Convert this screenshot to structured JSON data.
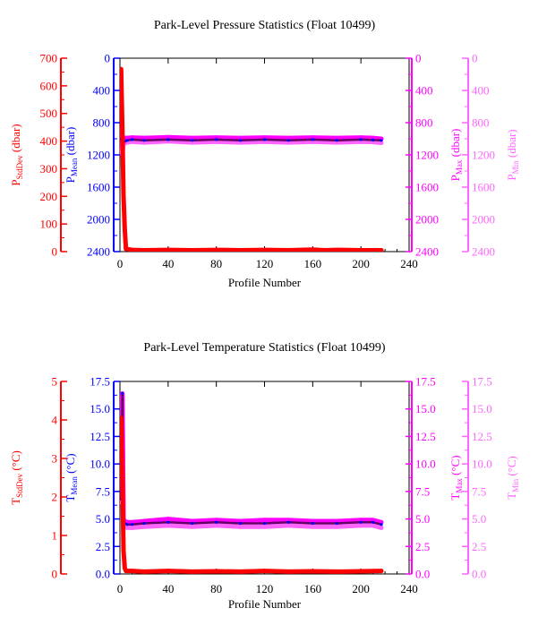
{
  "colors": {
    "red": "#ff0000",
    "blue": "#0000ff",
    "magenta": "#ff00ff",
    "pink": "#ff66ff",
    "dark": "#660066",
    "black": "#000000"
  },
  "chart_data": [
    {
      "type": "line",
      "title": "Park-Level Pressure Statistics (Float 10499)",
      "xlabel": "Profile Number",
      "xlim": [
        0,
        240
      ],
      "xticks": [
        "0",
        "40",
        "80",
        "120",
        "160",
        "200",
        "240"
      ],
      "axes": {
        "stddev": {
          "label_main": "P",
          "label_sub": "StdDev",
          "label_unit": " (dbar)",
          "lim": [
            0,
            700
          ],
          "ticks": [
            "0",
            "100",
            "200",
            "300",
            "400",
            "500",
            "600",
            "700"
          ],
          "color": "#ff0000"
        },
        "mean": {
          "label_main": "P",
          "label_sub": "Mean",
          "label_unit": " (dbar)",
          "lim": [
            2400,
            0
          ],
          "ticks": [
            "0",
            "400",
            "800",
            "1200",
            "1600",
            "2000",
            "2400"
          ],
          "color": "#0000ff"
        },
        "max": {
          "label_main": "P",
          "label_sub": "Max",
          "label_unit": " (dbar)",
          "lim": [
            2400,
            0
          ],
          "ticks": [
            "0",
            "400",
            "800",
            "1200",
            "1600",
            "2000",
            "2400"
          ],
          "color": "#ff00ff"
        },
        "min": {
          "label_main": "P",
          "label_sub": "Min",
          "label_unit": " (dbar)",
          "lim": [
            2400,
            0
          ],
          "ticks": [
            "0",
            "400",
            "800",
            "1200",
            "1600",
            "2000",
            "2400"
          ],
          "color": "#ff66ff"
        }
      },
      "series": {
        "stddev": {
          "x": [
            1,
            2,
            3,
            4,
            5,
            10,
            20,
            40,
            60,
            80,
            100,
            120,
            140,
            160,
            170,
            180,
            200,
            217
          ],
          "y": [
            660,
            440,
            200,
            80,
            10,
            6,
            5,
            6,
            5,
            6,
            5,
            6,
            5,
            7,
            5,
            6,
            5,
            5
          ]
        },
        "mean": {
          "x": [
            1,
            2,
            3,
            4,
            6,
            10,
            20,
            40,
            60,
            80,
            100,
            120,
            140,
            160,
            180,
            200,
            210,
            217
          ],
          "y": [
            1000,
            1150,
            1040,
            1030,
            1020,
            1010,
            1020,
            1010,
            1020,
            1010,
            1020,
            1010,
            1020,
            1010,
            1020,
            1010,
            1015,
            1020
          ]
        },
        "max": {
          "x": [
            1,
            2,
            3,
            4,
            6,
            10,
            20,
            40,
            60,
            80,
            100,
            120,
            140,
            160,
            180,
            200,
            210,
            217
          ],
          "y": [
            880,
            1120,
            1000,
            990,
            990,
            985,
            990,
            980,
            990,
            985,
            990,
            985,
            990,
            985,
            990,
            985,
            990,
            1000
          ]
        },
        "min": {
          "x": [
            1,
            2,
            3,
            4,
            6,
            10,
            20,
            40,
            60,
            80,
            100,
            120,
            140,
            160,
            180,
            200,
            210,
            217
          ],
          "y": [
            1060,
            1200,
            1060,
            1050,
            1045,
            1035,
            1045,
            1030,
            1045,
            1035,
            1045,
            1035,
            1045,
            1035,
            1045,
            1035,
            1040,
            1050
          ]
        }
      }
    },
    {
      "type": "line",
      "title": "Park-Level Temperature Statistics (Float 10499)",
      "xlabel": "Profile Number",
      "xlim": [
        0,
        240
      ],
      "xticks": [
        "0",
        "40",
        "80",
        "120",
        "160",
        "200",
        "240"
      ],
      "axes": {
        "stddev": {
          "label_main": "T",
          "label_sub": "StdDev",
          "label_unit": " (°C)",
          "lim": [
            0,
            5
          ],
          "ticks": [
            "0",
            "1",
            "2",
            "3",
            "4",
            "5"
          ],
          "color": "#ff0000"
        },
        "mean": {
          "label_main": "T",
          "label_sub": "Mean",
          "label_unit": " (°C)",
          "lim": [
            0,
            17.5
          ],
          "ticks": [
            "0.0",
            "2.5",
            "5.0",
            "7.5",
            "10.0",
            "12.5",
            "15.0",
            "17.5"
          ],
          "color": "#0000ff"
        },
        "max": {
          "label_main": "T",
          "label_sub": "Max",
          "label_unit": " (°C)",
          "lim": [
            0,
            17.5
          ],
          "ticks": [
            "0.0",
            "2.5",
            "5.0",
            "7.5",
            "10.0",
            "12.5",
            "15.0",
            "17.5"
          ],
          "color": "#ff00ff"
        },
        "min": {
          "label_main": "T",
          "label_sub": "Min",
          "label_unit": " (°C)",
          "lim": [
            0,
            17.5
          ],
          "ticks": [
            "0.0",
            "2.5",
            "5.0",
            "7.5",
            "10.0",
            "12.5",
            "15.0",
            "17.5"
          ],
          "color": "#ff66ff"
        }
      },
      "series": {
        "stddev": {
          "x": [
            1,
            2,
            3,
            4,
            5,
            10,
            20,
            40,
            60,
            80,
            100,
            120,
            140,
            160,
            180,
            200,
            217
          ],
          "y": [
            4.05,
            2.6,
            0.6,
            0.15,
            0.08,
            0.08,
            0.06,
            0.08,
            0.06,
            0.07,
            0.06,
            0.08,
            0.06,
            0.07,
            0.06,
            0.07,
            0.08
          ]
        },
        "mean": {
          "x": [
            1,
            2,
            3,
            4,
            6,
            10,
            20,
            40,
            60,
            80,
            100,
            120,
            140,
            160,
            180,
            200,
            210,
            217
          ],
          "y": [
            6.8,
            16.4,
            4.8,
            4.6,
            4.5,
            4.5,
            4.6,
            4.7,
            4.6,
            4.7,
            4.6,
            4.6,
            4.7,
            4.6,
            4.6,
            4.7,
            4.7,
            4.5
          ]
        },
        "max": {
          "x": [
            1,
            2,
            3,
            4,
            6,
            10,
            20,
            40,
            60,
            80,
            100,
            120,
            140,
            160,
            180,
            200,
            210,
            217
          ],
          "y": [
            7.0,
            16.4,
            5.0,
            4.8,
            4.7,
            4.7,
            4.8,
            5.0,
            4.8,
            4.9,
            4.8,
            4.9,
            4.9,
            4.8,
            4.8,
            4.9,
            4.9,
            4.7
          ]
        },
        "min": {
          "x": [
            1,
            2,
            3,
            4,
            6,
            10,
            20,
            40,
            60,
            80,
            100,
            120,
            140,
            160,
            180,
            200,
            210,
            217
          ],
          "y": [
            6.5,
            16.2,
            4.4,
            4.3,
            4.2,
            4.2,
            4.3,
            4.4,
            4.3,
            4.4,
            4.3,
            4.3,
            4.4,
            4.3,
            4.3,
            4.4,
            4.4,
            4.2
          ]
        }
      }
    }
  ]
}
